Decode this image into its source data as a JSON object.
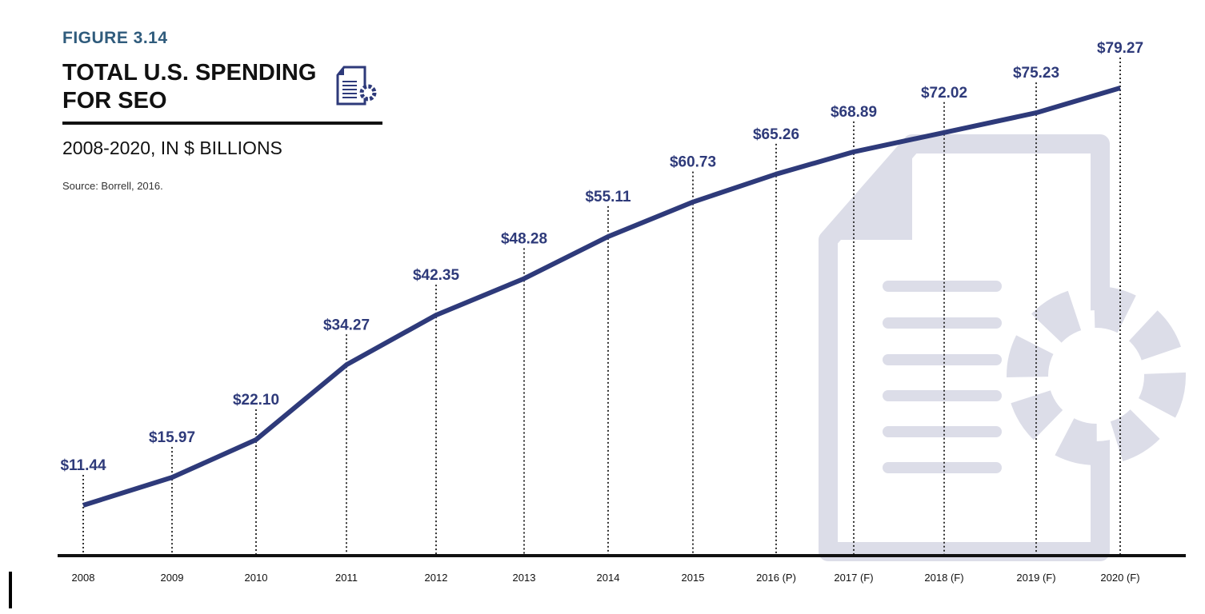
{
  "figure_label": "FIGURE 3.14",
  "title": "TOTAL U.S. SPENDING FOR SEO",
  "subtitle": "2008-2020, IN $ BILLIONS",
  "source": "Source: Borrell, 2016.",
  "colors": {
    "line": "#2e3a7a",
    "label": "#2e3a7a",
    "watermark": "#dcdde8",
    "axis": "#111111"
  },
  "chart_data": {
    "type": "line",
    "title": "TOTAL U.S. SPENDING FOR SEO",
    "xlabel": "",
    "ylabel": "$ Billions",
    "categories": [
      "2008",
      "2009",
      "2010",
      "2011",
      "2012",
      "2013",
      "2014",
      "2015",
      "2016 (P)",
      "2017 (F)",
      "2018 (F)",
      "2019 (F)",
      "2020 (F)"
    ],
    "values": [
      11.44,
      15.97,
      22.1,
      34.27,
      42.35,
      48.28,
      55.11,
      60.73,
      65.26,
      68.89,
      72.02,
      75.23,
      79.27
    ],
    "data_labels": [
      "$11.44",
      "$15.97",
      "$22.10",
      "$34.27",
      "$42.35",
      "$48.28",
      "$55.11",
      "$60.73",
      "$65.26",
      "$68.89",
      "$72.02",
      "$75.23",
      "$79.27"
    ],
    "grid": false
  }
}
